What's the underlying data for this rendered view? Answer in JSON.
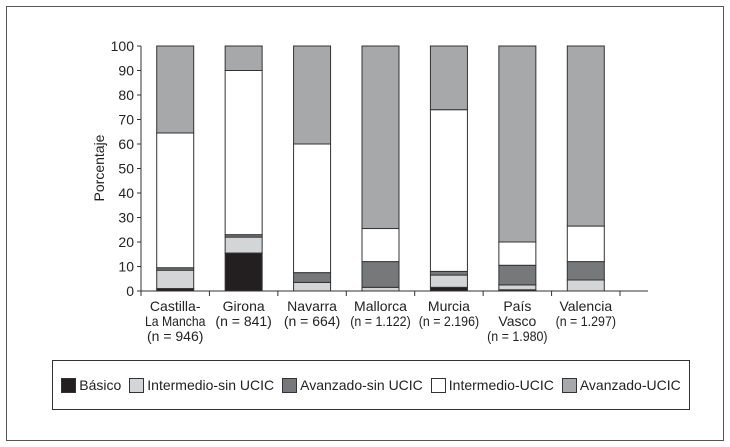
{
  "chart_data": {
    "type": "bar",
    "stacked": true,
    "ylabel": "Porcentaje",
    "ylim": [
      0,
      100
    ],
    "yticks": [
      0,
      10,
      20,
      30,
      40,
      50,
      60,
      70,
      80,
      90,
      100
    ],
    "categories": [
      [
        "Castilla-",
        "La Mancha",
        "(n = 946)"
      ],
      [
        "Girona",
        "(n = 841)"
      ],
      [
        "Navarra",
        "(n = 664)"
      ],
      [
        "Mallorca",
        "(n = 1.122)"
      ],
      [
        "Murcia",
        "(n = 2.196)"
      ],
      [
        "País",
        "Vasco",
        "(n = 1.980)"
      ],
      [
        "Valencia",
        "(n = 1.297)"
      ]
    ],
    "series": [
      {
        "name": "Básico",
        "color": "#231f20",
        "values": [
          1,
          15.5,
          0,
          0,
          1.5,
          0.5,
          0
        ]
      },
      {
        "name": "Intermedio-sin UCIC",
        "color": "#d4d5d6",
        "values": [
          7.5,
          6.5,
          3.5,
          1.5,
          5,
          2,
          4.5
        ]
      },
      {
        "name": "Avanzado-sin UCIC",
        "color": "#77787a",
        "values": [
          1,
          1,
          4,
          10.5,
          1.5,
          8,
          7.5
        ]
      },
      {
        "name": "Intermedio-UCIC",
        "color": "#ffffff",
        "values": [
          55,
          67,
          52.5,
          13.5,
          66,
          9.5,
          14.5
        ]
      },
      {
        "name": "Avanzado-UCIC",
        "color": "#a7a8aa",
        "values": [
          35.5,
          10,
          40,
          74.5,
          26,
          80,
          73.5
        ]
      }
    ],
    "grid": false,
    "legend": "bottom"
  }
}
